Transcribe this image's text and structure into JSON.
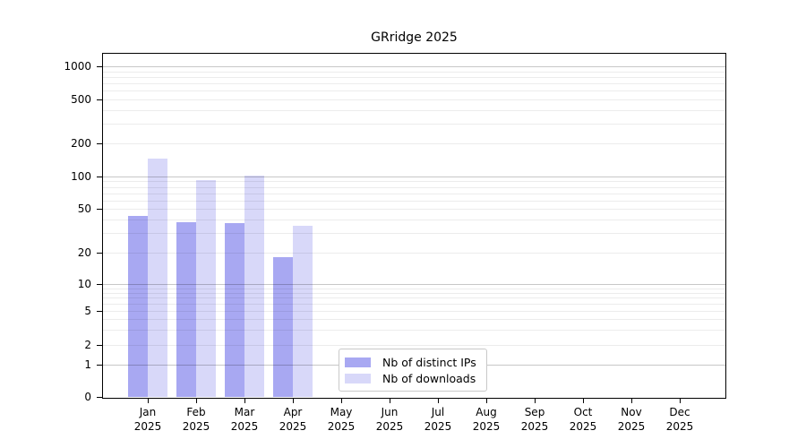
{
  "chart_data": {
    "type": "bar",
    "title": "GRridge 2025",
    "categories": [
      "Jan",
      "Feb",
      "Mar",
      "Apr",
      "May",
      "Jun",
      "Jul",
      "Aug",
      "Sep",
      "Oct",
      "Nov",
      "Dec"
    ],
    "year_label": "2025",
    "series": [
      {
        "name": "Nb of distinct IPs",
        "color": "#a8a8f2",
        "values": [
          43,
          38,
          37,
          18,
          0,
          0,
          0,
          0,
          0,
          0,
          0,
          0
        ]
      },
      {
        "name": "Nb of downloads",
        "color": "#d8d8f9",
        "values": [
          145,
          92,
          102,
          35,
          0,
          0,
          0,
          0,
          0,
          0,
          0,
          0
        ]
      }
    ],
    "yticks": [
      0,
      1,
      2,
      5,
      10,
      20,
      50,
      100,
      200,
      500,
      1000
    ],
    "scale": "log-like",
    "ylim": [
      0,
      1300
    ],
    "grid": "horizontal-major-and-minor",
    "legend_position": "bottom-center-inside",
    "axis_color": "#000000",
    "grid_minor_color": "rgba(0,0,0,0.075)",
    "grid_major_color": "rgba(0,0,0,0.22)"
  }
}
